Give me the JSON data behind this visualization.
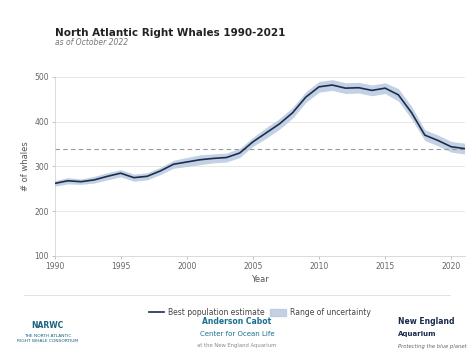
{
  "title": "North Atlantic Right Whales 1990-2021",
  "subtitle": "as of October 2022",
  "xlabel": "Year",
  "ylabel": "# of whales",
  "xlim": [
    1990,
    2021
  ],
  "ylim": [
    100,
    500
  ],
  "yticks": [
    100,
    200,
    300,
    400,
    500
  ],
  "xticks": [
    1990,
    1995,
    2000,
    2005,
    2010,
    2015,
    2020
  ],
  "dashed_line_y": 340,
  "line_color": "#1c2d4f",
  "band_color": "#b8c9de",
  "dashed_color": "#999999",
  "background_color": "#ffffff",
  "years": [
    1990,
    1991,
    1992,
    1993,
    1994,
    1995,
    1996,
    1997,
    1998,
    1999,
    2000,
    2001,
    2002,
    2003,
    2004,
    2005,
    2006,
    2007,
    2008,
    2009,
    2010,
    2011,
    2012,
    2013,
    2014,
    2015,
    2016,
    2017,
    2018,
    2019,
    2020,
    2021
  ],
  "best_estimate": [
    262,
    268,
    266,
    270,
    278,
    285,
    275,
    278,
    290,
    305,
    310,
    315,
    318,
    320,
    330,
    355,
    375,
    395,
    420,
    455,
    478,
    482,
    475,
    476,
    470,
    475,
    460,
    420,
    370,
    358,
    344,
    340
  ],
  "upper_bound": [
    268,
    275,
    272,
    278,
    286,
    293,
    283,
    286,
    298,
    314,
    320,
    326,
    328,
    330,
    340,
    365,
    387,
    407,
    432,
    467,
    490,
    494,
    487,
    488,
    482,
    487,
    474,
    434,
    382,
    370,
    356,
    352
  ],
  "lower_bound": [
    256,
    261,
    260,
    263,
    270,
    277,
    267,
    270,
    282,
    296,
    300,
    304,
    308,
    310,
    320,
    345,
    363,
    383,
    408,
    443,
    466,
    470,
    463,
    464,
    458,
    463,
    446,
    406,
    358,
    346,
    332,
    328
  ],
  "legend_line_label": "Best population estimate",
  "legend_band_label": "Range of uncertainty",
  "tick_fontsize": 5.5,
  "label_fontsize": 6.0,
  "title_fontsize": 7.5,
  "subtitle_fontsize": 5.5
}
